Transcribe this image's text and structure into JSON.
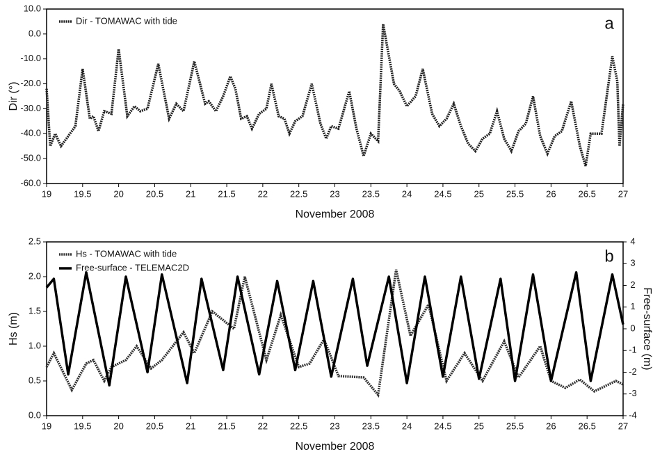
{
  "chart_data": [
    {
      "type": "line",
      "panel_label": "a",
      "x_label": "November 2008",
      "y_label": "Dir (°)",
      "xlim": [
        19,
        27
      ],
      "xticks": [
        19,
        19.5,
        20,
        20.5,
        21,
        21.5,
        22,
        22.5,
        23,
        23.5,
        24,
        24.5,
        25,
        25.5,
        26,
        26.5,
        27
      ],
      "ylim": [
        -60,
        10
      ],
      "yticks": [
        {
          "value": -60,
          "label": "-60.0"
        },
        {
          "value": -50,
          "label": "-50.0"
        },
        {
          "value": -40,
          "label": "-40.0"
        },
        {
          "value": -30,
          "label": "-30.0"
        },
        {
          "value": -20,
          "label": "-20.0"
        },
        {
          "value": -10,
          "label": "-10.0"
        },
        {
          "value": 0,
          "label": "0.0"
        },
        {
          "value": 10,
          "label": "10.0"
        }
      ],
      "legend": "upper left",
      "series": [
        {
          "name": "Dir - TOMAWAC with tide",
          "color": "#222222",
          "style": "dotted",
          "x": [
            19.0,
            19.05,
            19.12,
            19.2,
            19.3,
            19.4,
            19.5,
            19.6,
            19.65,
            19.72,
            19.8,
            19.9,
            20.0,
            20.12,
            20.22,
            20.3,
            20.4,
            20.55,
            20.7,
            20.8,
            20.9,
            21.05,
            21.2,
            21.25,
            21.35,
            21.45,
            21.55,
            21.62,
            21.7,
            21.78,
            21.85,
            21.95,
            22.05,
            22.12,
            22.22,
            22.3,
            22.37,
            22.45,
            22.55,
            22.68,
            22.8,
            22.88,
            22.95,
            23.05,
            23.2,
            23.3,
            23.4,
            23.5,
            23.6,
            23.67,
            23.82,
            23.9,
            24.0,
            24.12,
            24.22,
            24.35,
            24.45,
            24.55,
            24.65,
            24.75,
            24.85,
            24.95,
            25.05,
            25.15,
            25.25,
            25.35,
            25.45,
            25.55,
            25.65,
            25.75,
            25.85,
            25.95,
            26.05,
            26.15,
            26.28,
            26.4,
            26.48,
            26.55,
            26.7,
            26.85,
            26.92,
            26.95,
            27.0
          ],
          "values": [
            -22,
            -45,
            -40,
            -45,
            -41,
            -37,
            -14,
            -34,
            -33,
            -39,
            -31,
            -32,
            -6,
            -33,
            -29,
            -31,
            -30,
            -12,
            -34,
            -28,
            -31,
            -11,
            -28,
            -27,
            -31,
            -25,
            -17,
            -22,
            -34,
            -33,
            -38,
            -32,
            -30,
            -20,
            -33,
            -34,
            -40,
            -35,
            -33,
            -20,
            -36,
            -42,
            -37,
            -38,
            -23,
            -38,
            -49,
            -40,
            -43,
            4,
            -20,
            -23,
            -29,
            -25,
            -14,
            -32,
            -37,
            -34,
            -28,
            -37,
            -44,
            -47,
            -42,
            -40,
            -31,
            -42,
            -47,
            -39,
            -36,
            -25,
            -41,
            -48,
            -41,
            -39,
            -27,
            -45,
            -53,
            -40,
            -40,
            -9,
            -19,
            -45,
            -28
          ]
        }
      ]
    },
    {
      "type": "line",
      "panel_label": "b",
      "x_label": "November 2008",
      "y_label": "Hs (m)",
      "y2_label": "Free-surface (m)",
      "xlim": [
        19,
        27
      ],
      "xticks": [
        19,
        19.5,
        20,
        20.5,
        21,
        21.5,
        22,
        22.5,
        23,
        23.5,
        24,
        24.5,
        25,
        25.5,
        26,
        26.5,
        27
      ],
      "ylim": [
        0,
        2.5
      ],
      "yticks": [
        {
          "value": 0,
          "label": "0.0"
        },
        {
          "value": 0.5,
          "label": "0.5"
        },
        {
          "value": 1,
          "label": "1.0"
        },
        {
          "value": 1.5,
          "label": "1.5"
        },
        {
          "value": 2,
          "label": "2.0"
        },
        {
          "value": 2.5,
          "label": "2.5"
        }
      ],
      "y2lim": [
        -4,
        4
      ],
      "y2ticks": [
        -4,
        -3,
        -2,
        -1,
        0,
        1,
        2,
        3,
        4
      ],
      "legend": "upper left",
      "series": [
        {
          "name": "Hs - TOMAWAC with tide",
          "color": "#333333",
          "style": "dotted",
          "x": [
            19.0,
            19.1,
            19.35,
            19.55,
            19.65,
            19.8,
            19.9,
            20.1,
            20.25,
            20.45,
            20.6,
            20.9,
            21.05,
            21.3,
            21.6,
            21.75,
            22.05,
            22.25,
            22.5,
            22.65,
            22.85,
            23.05,
            23.4,
            23.6,
            23.85,
            24.05,
            24.3,
            24.55,
            24.8,
            25.05,
            25.35,
            25.55,
            25.85,
            26.0,
            26.2,
            26.4,
            26.6,
            26.9,
            27.0
          ],
          "values": [
            0.7,
            0.9,
            0.37,
            0.75,
            0.8,
            0.5,
            0.7,
            0.8,
            1.0,
            0.68,
            0.8,
            1.2,
            0.9,
            1.5,
            1.25,
            2.0,
            0.8,
            1.45,
            0.7,
            0.75,
            1.1,
            0.57,
            0.55,
            0.3,
            2.1,
            1.15,
            1.6,
            0.5,
            0.9,
            0.5,
            1.07,
            0.55,
            1.0,
            0.5,
            0.4,
            0.52,
            0.35,
            0.5,
            0.45
          ]
        },
        {
          "name": "Free-surface - TELEMAC2D",
          "color": "#000000",
          "style": "solid",
          "axis": "y2",
          "x": [
            19.0,
            19.1,
            19.3,
            19.55,
            19.87,
            20.1,
            20.4,
            20.6,
            20.95,
            21.15,
            21.45,
            21.65,
            21.95,
            22.2,
            22.45,
            22.7,
            22.95,
            23.25,
            23.45,
            23.75,
            24.0,
            24.25,
            24.5,
            24.75,
            25.0,
            25.3,
            25.5,
            25.75,
            26.0,
            26.35,
            26.55,
            26.85,
            27.0
          ],
          "values": [
            1.9,
            2.3,
            -2.1,
            2.6,
            -2.6,
            2.4,
            -2.0,
            2.5,
            -2.5,
            2.3,
            -1.9,
            2.4,
            -2.1,
            2.2,
            -1.9,
            2.2,
            -2.2,
            2.3,
            -1.7,
            2.4,
            -2.5,
            2.4,
            -2.2,
            2.4,
            -2.3,
            2.3,
            -2.4,
            2.5,
            -2.4,
            2.6,
            -2.4,
            2.5,
            0.2
          ]
        }
      ]
    }
  ]
}
